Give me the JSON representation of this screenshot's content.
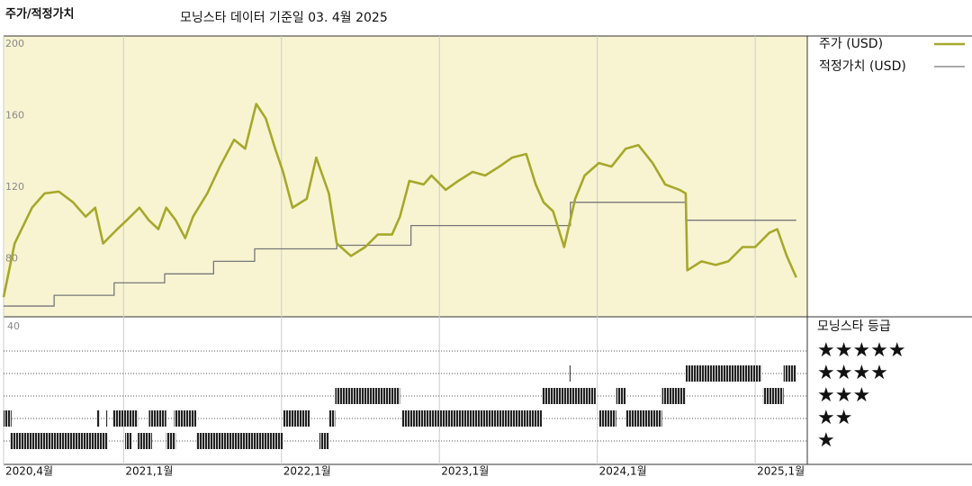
{
  "chart_data": {
    "type": "line",
    "title": "주가/적정가치",
    "subtitle": "모닝스타 데이터 기준일 03. 4월 2025",
    "xlim": [
      2020.24,
      2025.33
    ],
    "xticks": [
      {
        "value": 2020.24,
        "label": "2020,4월"
      },
      {
        "value": 2021.0,
        "label": "2021,1월"
      },
      {
        "value": 2022.0,
        "label": "2022,1월"
      },
      {
        "value": 2023.0,
        "label": "2023,1월"
      },
      {
        "value": 2024.0,
        "label": "2024,1월"
      },
      {
        "value": 2025.0,
        "label": "2025,1월"
      }
    ],
    "ylim": [
      47,
      204
    ],
    "yticks": [
      80,
      120,
      160,
      200
    ],
    "series": [
      {
        "name": "주가 (USD)",
        "color": "#a6a82a",
        "step": false,
        "x": [
          2020.24,
          2020.31,
          2020.42,
          2020.5,
          2020.59,
          2020.68,
          2020.76,
          2020.82,
          2020.87,
          2020.96,
          2021.02,
          2021.1,
          2021.16,
          2021.22,
          2021.27,
          2021.33,
          2021.39,
          2021.44,
          2021.53,
          2021.61,
          2021.7,
          2021.77,
          2021.84,
          2021.9,
          2021.96,
          2022.01,
          2022.07,
          2022.16,
          2022.22,
          2022.3,
          2022.35,
          2022.44,
          2022.53,
          2022.61,
          2022.7,
          2022.75,
          2022.81,
          2022.9,
          2022.95,
          2023.04,
          2023.12,
          2023.21,
          2023.29,
          2023.38,
          2023.46,
          2023.55,
          2023.61,
          2023.66,
          2023.72,
          2023.79,
          2023.86,
          2023.92,
          2024.01,
          2024.09,
          2024.18,
          2024.26,
          2024.35,
          2024.43,
          2024.52,
          2024.56,
          2024.57,
          2024.66,
          2024.75,
          2024.83,
          2024.92,
          2025.0,
          2025.09,
          2025.14,
          2025.2,
          2025.26
        ],
        "values": [
          58,
          88,
          108,
          116,
          117,
          111,
          103,
          108,
          88,
          96,
          101,
          108,
          101,
          96,
          108,
          101,
          91,
          103,
          116,
          131,
          146,
          141,
          166,
          158,
          141,
          128,
          108,
          113,
          136,
          116,
          88,
          81,
          86,
          93,
          93,
          103,
          123,
          121,
          126,
          118,
          123,
          128,
          126,
          131,
          136,
          138,
          121,
          111,
          106,
          86,
          113,
          126,
          133,
          131,
          141,
          143,
          133,
          121,
          118,
          116,
          73,
          78,
          76,
          78,
          86,
          86,
          94,
          96,
          81,
          69
        ]
      },
      {
        "name": "적정가치 (USD)",
        "color": "#777777",
        "step": true,
        "x": [
          2020.24,
          2020.56,
          2020.94,
          2021.26,
          2021.57,
          2021.83,
          2022.35,
          2022.82,
          2023.83,
          2024.56,
          2025.26
        ],
        "values": [
          53,
          59,
          66,
          71,
          78,
          85,
          87,
          98,
          111,
          101,
          101
        ]
      }
    ],
    "rating_title": "모닝스타 등급",
    "rating_axis_top": 40,
    "rating_levels": [
      {
        "value": 5,
        "label": "★★★★★"
      },
      {
        "value": 4,
        "label": "★★★★"
      },
      {
        "value": 3,
        "label": "★★★"
      },
      {
        "value": 2,
        "label": "★★"
      },
      {
        "value": 1,
        "label": "★"
      }
    ],
    "rating_segments": [
      {
        "start": 2020.28,
        "end": 2020.9,
        "value": 1
      },
      {
        "start": 2021.01,
        "end": 2021.05,
        "value": 1
      },
      {
        "start": 2021.09,
        "end": 2021.18,
        "value": 1
      },
      {
        "start": 2021.27,
        "end": 2021.33,
        "value": 1
      },
      {
        "start": 2021.46,
        "end": 2022.01,
        "value": 1
      },
      {
        "start": 2022.24,
        "end": 2022.3,
        "value": 1
      },
      {
        "start": 2020.24,
        "end": 2020.29,
        "value": 2
      },
      {
        "start": 2020.83,
        "end": 2020.85,
        "value": 2
      },
      {
        "start": 2020.89,
        "end": 2020.9,
        "value": 2
      },
      {
        "start": 2020.93,
        "end": 2021.09,
        "value": 2
      },
      {
        "start": 2021.16,
        "end": 2021.27,
        "value": 2
      },
      {
        "start": 2021.32,
        "end": 2021.46,
        "value": 2
      },
      {
        "start": 2022.01,
        "end": 2022.18,
        "value": 2
      },
      {
        "start": 2022.3,
        "end": 2022.34,
        "value": 2
      },
      {
        "start": 2022.76,
        "end": 2023.65,
        "value": 2
      },
      {
        "start": 2024.01,
        "end": 2024.12,
        "value": 2
      },
      {
        "start": 2024.18,
        "end": 2024.41,
        "value": 2
      },
      {
        "start": 2022.34,
        "end": 2022.75,
        "value": 3
      },
      {
        "start": 2023.65,
        "end": 2023.99,
        "value": 3
      },
      {
        "start": 2024.12,
        "end": 2024.18,
        "value": 3
      },
      {
        "start": 2024.41,
        "end": 2024.56,
        "value": 3
      },
      {
        "start": 2025.05,
        "end": 2025.18,
        "value": 3
      },
      {
        "start": 2023.82,
        "end": 2023.83,
        "value": 4
      },
      {
        "start": 2024.56,
        "end": 2025.04,
        "value": 4
      },
      {
        "start": 2025.18,
        "end": 2025.26,
        "value": 4
      }
    ]
  }
}
